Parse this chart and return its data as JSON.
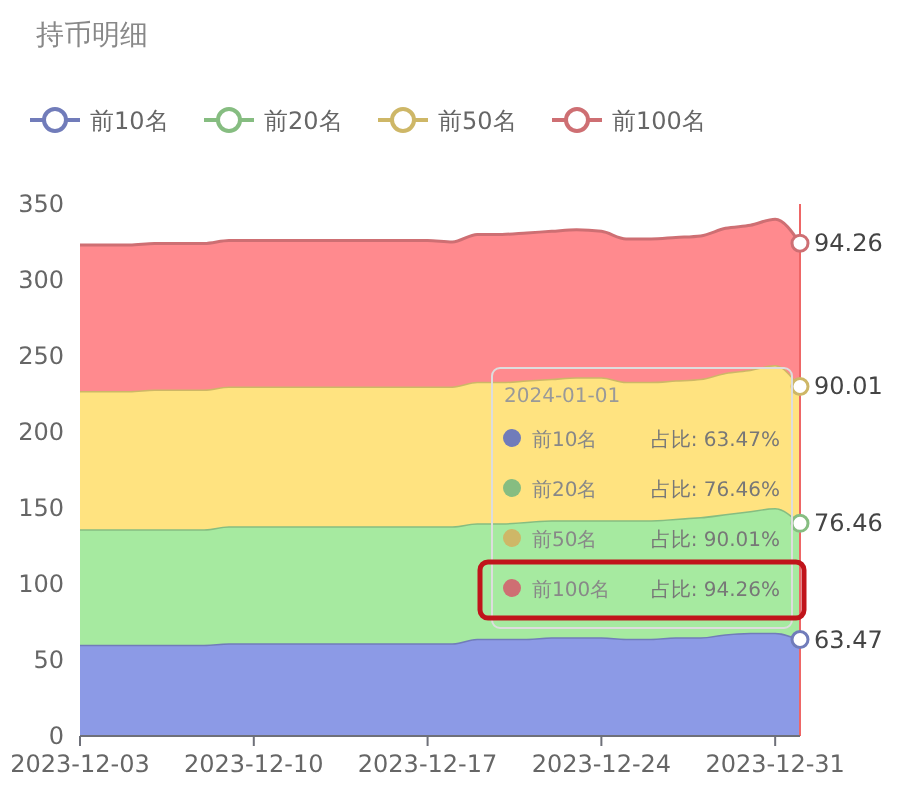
{
  "chart_data": {
    "type": "area",
    "title": "持币明细",
    "stacked": true,
    "legend": "top",
    "x": [
      "2023-12-03",
      "2023-12-04",
      "2023-12-05",
      "2023-12-06",
      "2023-12-07",
      "2023-12-08",
      "2023-12-09",
      "2023-12-10",
      "2023-12-11",
      "2023-12-12",
      "2023-12-13",
      "2023-12-14",
      "2023-12-15",
      "2023-12-16",
      "2023-12-17",
      "2023-12-18",
      "2023-12-19",
      "2023-12-20",
      "2023-12-21",
      "2023-12-22",
      "2023-12-23",
      "2023-12-24",
      "2023-12-25",
      "2023-12-26",
      "2023-12-27",
      "2023-12-28",
      "2023-12-29",
      "2023-12-30",
      "2023-12-31",
      "2024-01-01"
    ],
    "xlim": [
      "2023-12-03",
      "2024-01-01"
    ],
    "xticks": [
      {
        "value": "2023-12-03",
        "label": "2023-12-03"
      },
      {
        "value": "2023-12-10",
        "label": "2023-12-10"
      },
      {
        "value": "2023-12-17",
        "label": "2023-12-17"
      },
      {
        "value": "2023-12-24",
        "label": "2023-12-24"
      },
      {
        "value": "2023-12-31",
        "label": "2023-12-31"
      }
    ],
    "ylim": [
      0,
      350
    ],
    "yticks": [
      0,
      50,
      100,
      150,
      200,
      250,
      300,
      350
    ],
    "series": [
      {
        "name": "前10名",
        "color": "#8c9ae6",
        "values": [
          60,
          60,
          60,
          60,
          60,
          60,
          61,
          61,
          61,
          61,
          61,
          61,
          61,
          61,
          61,
          61,
          64,
          64,
          64,
          65,
          65,
          65,
          64,
          64,
          65,
          65,
          67,
          68,
          68,
          63.47
        ],
        "value_labels": [
          null,
          null,
          null,
          null,
          null,
          null,
          null,
          null,
          null,
          null,
          null,
          null,
          null,
          null,
          null,
          null,
          null,
          null,
          null,
          null,
          null,
          null,
          null,
          null,
          null,
          null,
          null,
          null,
          null,
          "63.47"
        ]
      },
      {
        "name": "前20名",
        "color": "#a6eaa0",
        "values": [
          76,
          76,
          76,
          76,
          76,
          76,
          77,
          77,
          77,
          77,
          77,
          77,
          77,
          77,
          77,
          77,
          76,
          76,
          77,
          77,
          77,
          77,
          78,
          78,
          78,
          79,
          79,
          80,
          82,
          76.46
        ],
        "value_labels": [
          null,
          null,
          null,
          null,
          null,
          null,
          null,
          null,
          null,
          null,
          null,
          null,
          null,
          null,
          null,
          null,
          null,
          null,
          null,
          null,
          null,
          null,
          null,
          null,
          null,
          null,
          null,
          null,
          null,
          "76.46"
        ]
      },
      {
        "name": "前50名",
        "color": "#ffe380",
        "values": [
          91,
          91,
          91,
          92,
          92,
          92,
          92,
          92,
          92,
          92,
          92,
          92,
          92,
          92,
          92,
          92,
          93,
          93,
          93,
          93,
          94,
          94,
          91,
          91,
          91,
          91,
          93,
          93,
          94,
          90.01
        ],
        "value_labels": [
          null,
          null,
          null,
          null,
          null,
          null,
          null,
          null,
          null,
          null,
          null,
          null,
          null,
          null,
          null,
          null,
          null,
          null,
          null,
          null,
          null,
          null,
          null,
          null,
          null,
          null,
          null,
          null,
          null,
          "90.01"
        ]
      },
      {
        "name": "前100名",
        "color": "#ff8a8e",
        "values": [
          96,
          96,
          96,
          96,
          96,
          96,
          96,
          96,
          96,
          96,
          96,
          96,
          96,
          96,
          96,
          95,
          97,
          97,
          97,
          97,
          97,
          96,
          94,
          94,
          94,
          94,
          95,
          95,
          96,
          94.26
        ],
        "value_labels": [
          null,
          null,
          null,
          null,
          null,
          null,
          null,
          null,
          null,
          null,
          null,
          null,
          null,
          null,
          null,
          null,
          null,
          null,
          null,
          null,
          null,
          null,
          null,
          null,
          null,
          null,
          null,
          null,
          null,
          "94.26"
        ]
      }
    ],
    "ref_lines": [
      {
        "axis": "x",
        "value": "2024-01-01",
        "color": "#ee6666"
      }
    ],
    "annotations": [
      "2024-01-01",
      "占比: 63.47%",
      "占比: 76.46%",
      "占比: 90.01%",
      "占比: 94.26%"
    ]
  }
}
